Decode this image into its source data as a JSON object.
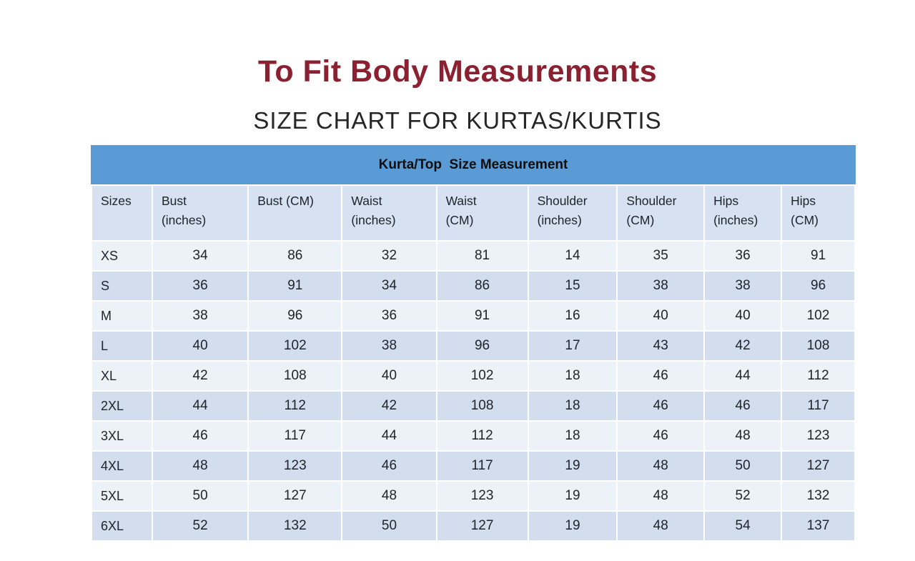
{
  "page": {
    "title": "To Fit Body Measurements",
    "subtitle": "SIZE CHART FOR KURTAS/KURTIS"
  },
  "table": {
    "band_title": "Kurta/Top  Size Measurement",
    "headers": [
      "Sizes",
      "Bust\n(inches)",
      "Bust (CM)",
      "Waist\n(inches)",
      "Waist\n(CM)",
      "Shoulder\n(inches)",
      "Shoulder\n(CM)",
      "Hips\n(inches)",
      "Hips\n(CM)"
    ],
    "rows": [
      {
        "size": "XS",
        "values": [
          34,
          86,
          32,
          81,
          14,
          35,
          36,
          91
        ]
      },
      {
        "size": "S",
        "values": [
          36,
          91,
          34,
          86,
          15,
          38,
          38,
          96
        ]
      },
      {
        "size": "M",
        "values": [
          38,
          96,
          36,
          91,
          16,
          40,
          40,
          102
        ]
      },
      {
        "size": "L",
        "values": [
          40,
          102,
          38,
          96,
          17,
          43,
          42,
          108
        ]
      },
      {
        "size": "XL",
        "values": [
          42,
          108,
          40,
          102,
          18,
          46,
          44,
          112
        ]
      },
      {
        "size": "2XL",
        "values": [
          44,
          112,
          42,
          108,
          18,
          46,
          46,
          117
        ]
      },
      {
        "size": "3XL",
        "values": [
          46,
          117,
          44,
          112,
          18,
          46,
          48,
          123
        ]
      },
      {
        "size": "4XL",
        "values": [
          48,
          123,
          46,
          117,
          19,
          48,
          50,
          127
        ]
      },
      {
        "size": "5XL",
        "values": [
          50,
          127,
          48,
          123,
          19,
          48,
          52,
          132
        ]
      },
      {
        "size": "6XL",
        "values": [
          52,
          132,
          50,
          127,
          19,
          48,
          54,
          137
        ]
      }
    ]
  },
  "colors": {
    "title_maroon": "#8b2130",
    "subtitle_gray": "#262626",
    "band_blue": "#5b9bd5",
    "header_row_bg": "#d6e1f1",
    "row_light": "#edf1f8",
    "row_dark": "#d2ddee",
    "cell_text": "#20242b"
  },
  "chart_data": {
    "type": "table",
    "title": "To Fit Body Measurements",
    "subtitle": "SIZE CHART FOR KURTAS/KURTIS",
    "table_caption": "Kurta/Top  Size Measurement",
    "columns": [
      "Sizes",
      "Bust (inches)",
      "Bust (CM)",
      "Waist (inches)",
      "Waist (CM)",
      "Shoulder (inches)",
      "Shoulder (CM)",
      "Hips (inches)",
      "Hips (CM)"
    ],
    "rows": [
      [
        "XS",
        34,
        86,
        32,
        81,
        14,
        35,
        36,
        91
      ],
      [
        "S",
        36,
        91,
        34,
        86,
        15,
        38,
        38,
        96
      ],
      [
        "M",
        38,
        96,
        36,
        91,
        16,
        40,
        40,
        102
      ],
      [
        "L",
        40,
        102,
        38,
        96,
        17,
        43,
        42,
        108
      ],
      [
        "XL",
        42,
        108,
        40,
        102,
        18,
        46,
        44,
        112
      ],
      [
        "2XL",
        44,
        112,
        42,
        108,
        18,
        46,
        46,
        117
      ],
      [
        "3XL",
        46,
        117,
        44,
        112,
        18,
        46,
        48,
        123
      ],
      [
        "4XL",
        48,
        123,
        46,
        117,
        19,
        48,
        50,
        127
      ],
      [
        "5XL",
        50,
        127,
        48,
        123,
        19,
        48,
        52,
        132
      ],
      [
        "6XL",
        52,
        132,
        50,
        127,
        19,
        48,
        54,
        137
      ]
    ]
  }
}
